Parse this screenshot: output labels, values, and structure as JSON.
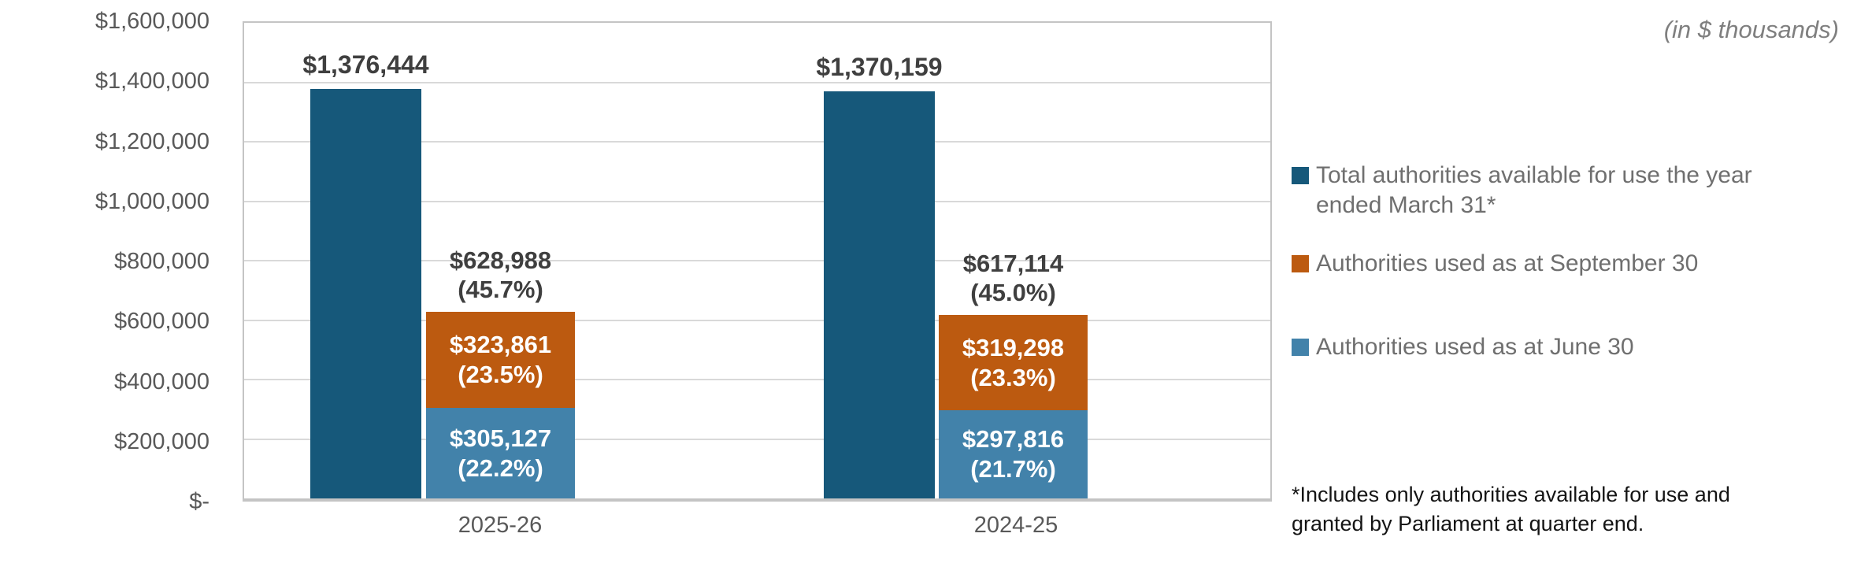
{
  "unit_note": "(in $ thousands)",
  "footnote": "*Includes only authorities available for use and\ngranted by Parliament at quarter end.",
  "chart_data": {
    "type": "bar",
    "subtype": "clustered total bar + stacked usage bar per category",
    "title": "",
    "unit_note": "(in $ thousands)",
    "categories": [
      "2025-26",
      "2024-25"
    ],
    "y_axis": {
      "ylim": [
        0,
        1600000
      ],
      "tick_interval": 200000,
      "tick_labels": [
        "$1,600,000",
        "$1,400,000",
        "$1,200,000",
        "$1,000,000",
        "$800,000",
        "$600,000",
        "$400,000",
        "$200,000",
        "$-"
      ]
    },
    "grid": true,
    "legend_position": "right",
    "colors": {
      "total": "#16587A",
      "september": "#BC5A10",
      "june": "#4282AA",
      "gridline": "#D9D9D9",
      "axis_text": "#595959",
      "data_label_text": "#3F3F3F"
    },
    "series": [
      {
        "name": "Total authorities available for use the year ended March 31*",
        "legend_label": "Total authorities available for use the year\nended March 31*",
        "role": "total",
        "color": "#16587A",
        "values": [
          1376444,
          1370159
        ],
        "data_labels": [
          "$1,376,444",
          "$1,370,159"
        ]
      },
      {
        "name": "Authorities used as at September 30",
        "legend_label": "Authorities used as at September 30",
        "role": "stack-top",
        "color": "#BC5A10",
        "values": [
          323861,
          319298
        ],
        "data_labels": [
          "$323,861\n(23.5%)",
          "$319,298\n(23.3%)"
        ]
      },
      {
        "name": "Authorities used as at June 30",
        "legend_label": "Authorities used as at June 30",
        "role": "stack-bottom",
        "color": "#4282AA",
        "values": [
          305127,
          297816
        ],
        "data_labels": [
          "$305,127\n(22.2%)",
          "$297,816\n(21.7%)"
        ]
      }
    ],
    "stack_sum_labels": [
      "$628,988\n(45.7%)",
      "$617,114\n(45.0%)"
    ],
    "stack_sums": [
      628988,
      617114
    ]
  }
}
